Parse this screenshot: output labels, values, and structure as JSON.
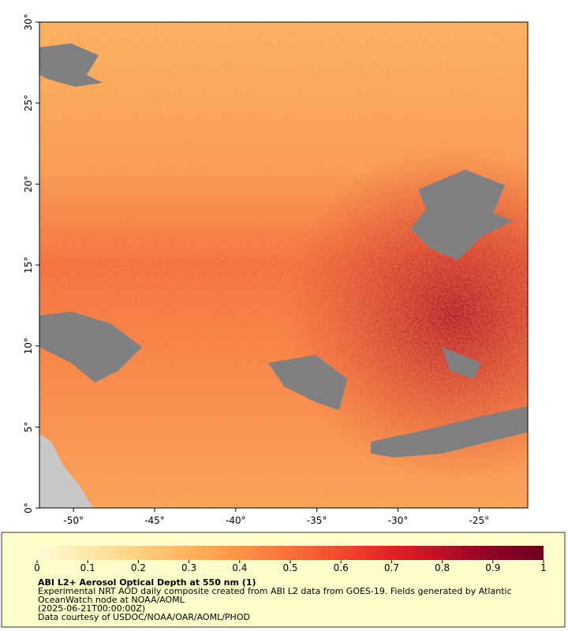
{
  "chart_data": {
    "type": "map",
    "xlim": [
      -52.1,
      -22
    ],
    "ylim": [
      0,
      30
    ],
    "xticks": [
      {
        "value": -50,
        "label": "-50°"
      },
      {
        "value": -45,
        "label": "-45°"
      },
      {
        "value": -40,
        "label": "-40°"
      },
      {
        "value": -35,
        "label": "-35°"
      },
      {
        "value": -30,
        "label": "-30°"
      },
      {
        "value": -25,
        "label": "-25°"
      }
    ],
    "yticks": [
      {
        "value": 0,
        "label": "0°"
      },
      {
        "value": 5,
        "label": "5°"
      },
      {
        "value": 10,
        "label": "10°"
      },
      {
        "value": 15,
        "label": "15°"
      },
      {
        "value": 20,
        "label": "20°"
      },
      {
        "value": 25,
        "label": "25°"
      },
      {
        "value": 30,
        "label": "30°"
      }
    ],
    "colorbar": {
      "lim": [
        0,
        1
      ],
      "ticks": [
        0,
        0.1,
        0.2,
        0.3,
        0.4,
        0.5,
        0.6,
        0.7,
        0.8,
        0.9,
        1
      ],
      "colors": [
        "#fffbd8",
        "#fee9a8",
        "#fed181",
        "#feb25c",
        "#fd9446",
        "#fc6e38",
        "#f14a2c",
        "#dc2424",
        "#bc0f26",
        "#8c0326",
        "#6e0020"
      ]
    },
    "title": "ABI L2+ Aerosol Optical Depth at 550 nm (1)",
    "notes": [
      "Experimental NRT AOD daily composite created from ABI L2 data from GOES-19. Fields generated by Atlantic",
      "OceanWatch node at NOAA/AOML",
      "(2025-06-21T00:00:00Z)",
      "Data courtesy of USDOC/NOAA/OAR/AOML/PHOD"
    ]
  }
}
